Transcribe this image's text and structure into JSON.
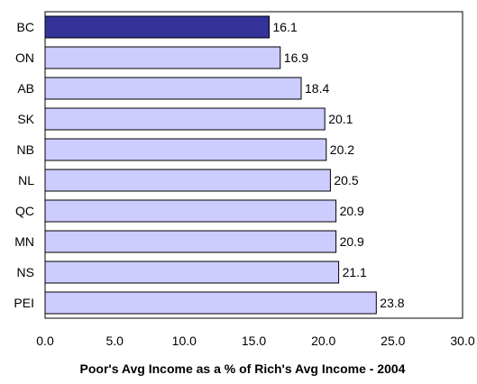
{
  "chart_data": {
    "type": "bar",
    "orientation": "horizontal",
    "categories": [
      "BC",
      "ON",
      "AB",
      "SK",
      "NB",
      "NL",
      "QC",
      "MN",
      "NS",
      "PEI"
    ],
    "values": [
      16.1,
      16.9,
      18.4,
      20.1,
      20.2,
      20.5,
      20.9,
      20.9,
      21.1,
      23.8
    ],
    "value_labels": [
      "16.1",
      "16.9",
      "18.4",
      "20.1",
      "20.2",
      "20.5",
      "20.9",
      "20.9",
      "21.1",
      "23.8"
    ],
    "highlight_category": "BC",
    "title": "",
    "xlabel": "Poor's Avg Income as a % of Rich's Avg Income - 2004",
    "ylabel": "",
    "xlim": [
      0,
      30
    ],
    "x_ticks": [
      0,
      5,
      10,
      15,
      20,
      25,
      30
    ],
    "x_tick_labels": [
      "0.0",
      "5.0",
      "10.0",
      "15.0",
      "20.0",
      "25.0",
      "30.0"
    ],
    "grid": false,
    "legend": "none",
    "colors": {
      "bar_fill": "#ccccff",
      "bar_highlight": "#333399",
      "bar_stroke": "#000000",
      "axis": "#000000",
      "text": "#000000"
    }
  }
}
